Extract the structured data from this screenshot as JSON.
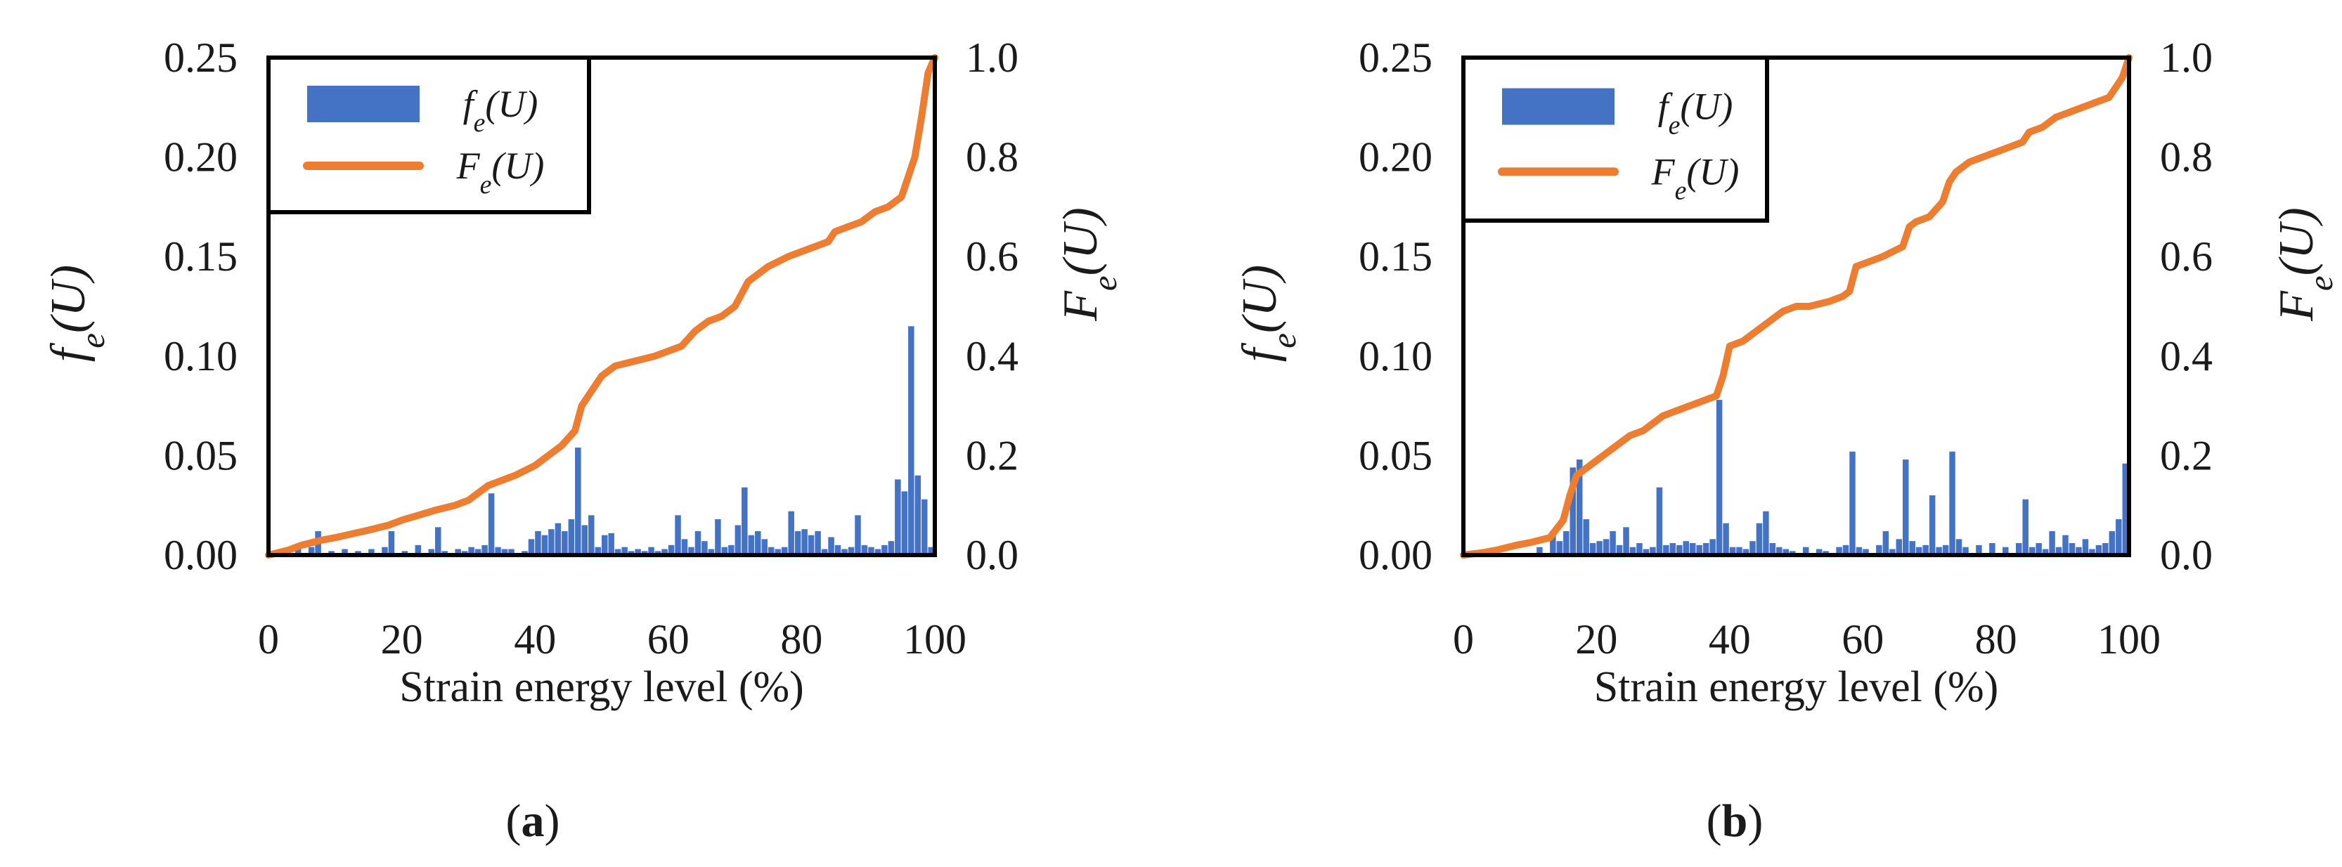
{
  "panels": [
    {
      "id": "a",
      "caption_label": "a",
      "chart_data": {
        "type": "bar",
        "title": "",
        "xlabel": "Strain energy level (%)",
        "ylabel_left": "f_e(U)",
        "ylabel_right": "F_e(U)",
        "xlim": [
          0,
          100
        ],
        "ylim_left": [
          0,
          0.25
        ],
        "ylim_right": [
          0,
          1.0
        ],
        "xticks": [
          "0",
          "20",
          "40",
          "60",
          "80",
          "100"
        ],
        "yticks_left": [
          "0.00",
          "0.05",
          "0.10",
          "0.15",
          "0.20",
          "0.25"
        ],
        "yticks_right": [
          "0.0",
          "0.2",
          "0.4",
          "0.6",
          "0.8",
          "1.0"
        ],
        "legend_position": "top-left",
        "series": [
          {
            "name": "f_e(U)",
            "type": "bar",
            "axis": "left",
            "color": "#4472C4",
            "bin_width": 1,
            "x": [
              2,
              5,
              7,
              8,
              10,
              12,
              14,
              16,
              18,
              19,
              21,
              23,
              25,
              26,
              27,
              29,
              30,
              31,
              32,
              33,
              34,
              35,
              36,
              37,
              39,
              40,
              41,
              42,
              43,
              44,
              45,
              46,
              47,
              48,
              49,
              50,
              51,
              52,
              53,
              54,
              55,
              56,
              57,
              58,
              59,
              60,
              61,
              62,
              63,
              64,
              65,
              66,
              67,
              68,
              69,
              70,
              71,
              72,
              73,
              74,
              75,
              76,
              77,
              78,
              79,
              80,
              81,
              82,
              83,
              84,
              85,
              86,
              87,
              88,
              89,
              90,
              91,
              92,
              93,
              94,
              95,
              96,
              97,
              98,
              99,
              100
            ],
            "values": [
              0.002,
              0.003,
              0.004,
              0.012,
              0.002,
              0.003,
              0.002,
              0.003,
              0.004,
              0.012,
              0.002,
              0.005,
              0.003,
              0.014,
              0.002,
              0.003,
              0.002,
              0.004,
              0.003,
              0.005,
              0.031,
              0.004,
              0.003,
              0.003,
              0.002,
              0.008,
              0.012,
              0.01,
              0.013,
              0.016,
              0.012,
              0.018,
              0.054,
              0.015,
              0.02,
              0.004,
              0.01,
              0.011,
              0.003,
              0.004,
              0.002,
              0.003,
              0.002,
              0.004,
              0.002,
              0.003,
              0.005,
              0.02,
              0.008,
              0.004,
              0.012,
              0.007,
              0.003,
              0.018,
              0.004,
              0.005,
              0.015,
              0.034,
              0.01,
              0.012,
              0.008,
              0.004,
              0.003,
              0.004,
              0.022,
              0.012,
              0.013,
              0.01,
              0.012,
              0.003,
              0.009,
              0.005,
              0.003,
              0.004,
              0.02,
              0.005,
              0.004,
              0.003,
              0.005,
              0.007,
              0.038,
              0.032,
              0.115,
              0.04,
              0.028,
              0.004
            ]
          },
          {
            "name": "F_e(U)",
            "type": "line",
            "axis": "right",
            "color": "#ED7D31",
            "x": [
              0,
              3,
              5,
              8,
              10,
              15,
              18,
              20,
              25,
              28,
              30,
              33,
              35,
              37,
              40,
              42,
              44,
              46,
              47,
              48,
              49,
              50,
              52,
              55,
              58,
              60,
              62,
              64,
              66,
              68,
              70,
              72,
              73,
              75,
              78,
              80,
              82,
              84,
              85,
              87,
              89,
              91,
              93,
              95,
              96,
              97,
              98,
              99,
              100
            ],
            "values": [
              0,
              0.01,
              0.02,
              0.03,
              0.035,
              0.05,
              0.06,
              0.07,
              0.09,
              0.1,
              0.11,
              0.14,
              0.15,
              0.16,
              0.18,
              0.2,
              0.22,
              0.25,
              0.3,
              0.32,
              0.34,
              0.36,
              0.38,
              0.39,
              0.4,
              0.41,
              0.42,
              0.45,
              0.47,
              0.48,
              0.5,
              0.55,
              0.56,
              0.58,
              0.6,
              0.61,
              0.62,
              0.63,
              0.65,
              0.66,
              0.67,
              0.69,
              0.7,
              0.72,
              0.76,
              0.8,
              0.88,
              0.97,
              1.0
            ]
          }
        ]
      }
    },
    {
      "id": "b",
      "caption_label": "b",
      "chart_data": {
        "type": "bar",
        "title": "",
        "xlabel": "Strain energy level (%)",
        "ylabel_left": "f_e(U)",
        "ylabel_right": "F_e(U)",
        "xlim": [
          0,
          100
        ],
        "ylim_left": [
          0,
          0.25
        ],
        "ylim_right": [
          0,
          1.0
        ],
        "xticks": [
          "0",
          "20",
          "40",
          "60",
          "80",
          "100"
        ],
        "yticks_left": [
          "0.00",
          "0.05",
          "0.10",
          "0.15",
          "0.20",
          "0.25"
        ],
        "yticks_right": [
          "0.0",
          "0.2",
          "0.4",
          "0.6",
          "0.8",
          "1.0"
        ],
        "legend_position": "top-left",
        "series": [
          {
            "name": "f_e(U)",
            "type": "bar",
            "axis": "left",
            "color": "#4472C4",
            "bin_width": 1,
            "x": [
              12,
              14,
              15,
              16,
              17,
              18,
              19,
              20,
              21,
              22,
              23,
              24,
              25,
              26,
              27,
              28,
              29,
              30,
              31,
              32,
              33,
              34,
              35,
              36,
              37,
              38,
              39,
              40,
              41,
              42,
              43,
              44,
              45,
              46,
              47,
              48,
              49,
              50,
              52,
              54,
              55,
              57,
              58,
              59,
              60,
              61,
              63,
              64,
              65,
              66,
              67,
              68,
              69,
              70,
              71,
              72,
              73,
              74,
              75,
              76,
              78,
              80,
              82,
              84,
              85,
              86,
              87,
              88,
              89,
              90,
              91,
              92,
              93,
              94,
              95,
              96,
              97,
              98,
              99,
              100
            ],
            "values": [
              0.004,
              0.012,
              0.007,
              0.012,
              0.044,
              0.048,
              0.018,
              0.006,
              0.007,
              0.008,
              0.012,
              0.005,
              0.014,
              0.004,
              0.006,
              0.003,
              0.004,
              0.034,
              0.005,
              0.006,
              0.005,
              0.007,
              0.006,
              0.005,
              0.006,
              0.008,
              0.078,
              0.016,
              0.004,
              0.004,
              0.003,
              0.007,
              0.016,
              0.022,
              0.006,
              0.004,
              0.003,
              0.002,
              0.004,
              0.003,
              0.002,
              0.004,
              0.005,
              0.052,
              0.004,
              0.003,
              0.005,
              0.012,
              0.003,
              0.008,
              0.048,
              0.007,
              0.004,
              0.005,
              0.03,
              0.004,
              0.005,
              0.052,
              0.008,
              0.004,
              0.005,
              0.006,
              0.004,
              0.006,
              0.028,
              0.004,
              0.006,
              0.003,
              0.012,
              0.004,
              0.01,
              0.006,
              0.004,
              0.008,
              0.003,
              0.005,
              0.006,
              0.012,
              0.018,
              0.046
            ]
          },
          {
            "name": "F_e(U)",
            "type": "line",
            "axis": "right",
            "color": "#ED7D31",
            "x": [
              0,
              3,
              5,
              8,
              10,
              13,
              15,
              16,
              17,
              18,
              19,
              20,
              22,
              23,
              25,
              27,
              29,
              30,
              32,
              34,
              36,
              38,
              39,
              40,
              42,
              44,
              46,
              48,
              50,
              52,
              55,
              57,
              58,
              59,
              61,
              63,
              66,
              67,
              68,
              70,
              72,
              73,
              74,
              76,
              78,
              80,
              82,
              84,
              85,
              87,
              89,
              91,
              93,
              95,
              97,
              98,
              99,
              100
            ],
            "values": [
              0,
              0.005,
              0.01,
              0.02,
              0.025,
              0.035,
              0.07,
              0.12,
              0.16,
              0.17,
              0.18,
              0.19,
              0.21,
              0.22,
              0.24,
              0.25,
              0.27,
              0.28,
              0.29,
              0.3,
              0.31,
              0.32,
              0.36,
              0.42,
              0.43,
              0.45,
              0.47,
              0.49,
              0.5,
              0.5,
              0.51,
              0.52,
              0.53,
              0.58,
              0.59,
              0.6,
              0.62,
              0.66,
              0.67,
              0.68,
              0.71,
              0.75,
              0.77,
              0.79,
              0.8,
              0.81,
              0.82,
              0.83,
              0.85,
              0.86,
              0.88,
              0.89,
              0.9,
              0.91,
              0.92,
              0.94,
              0.96,
              1.0
            ]
          }
        ]
      }
    }
  ]
}
